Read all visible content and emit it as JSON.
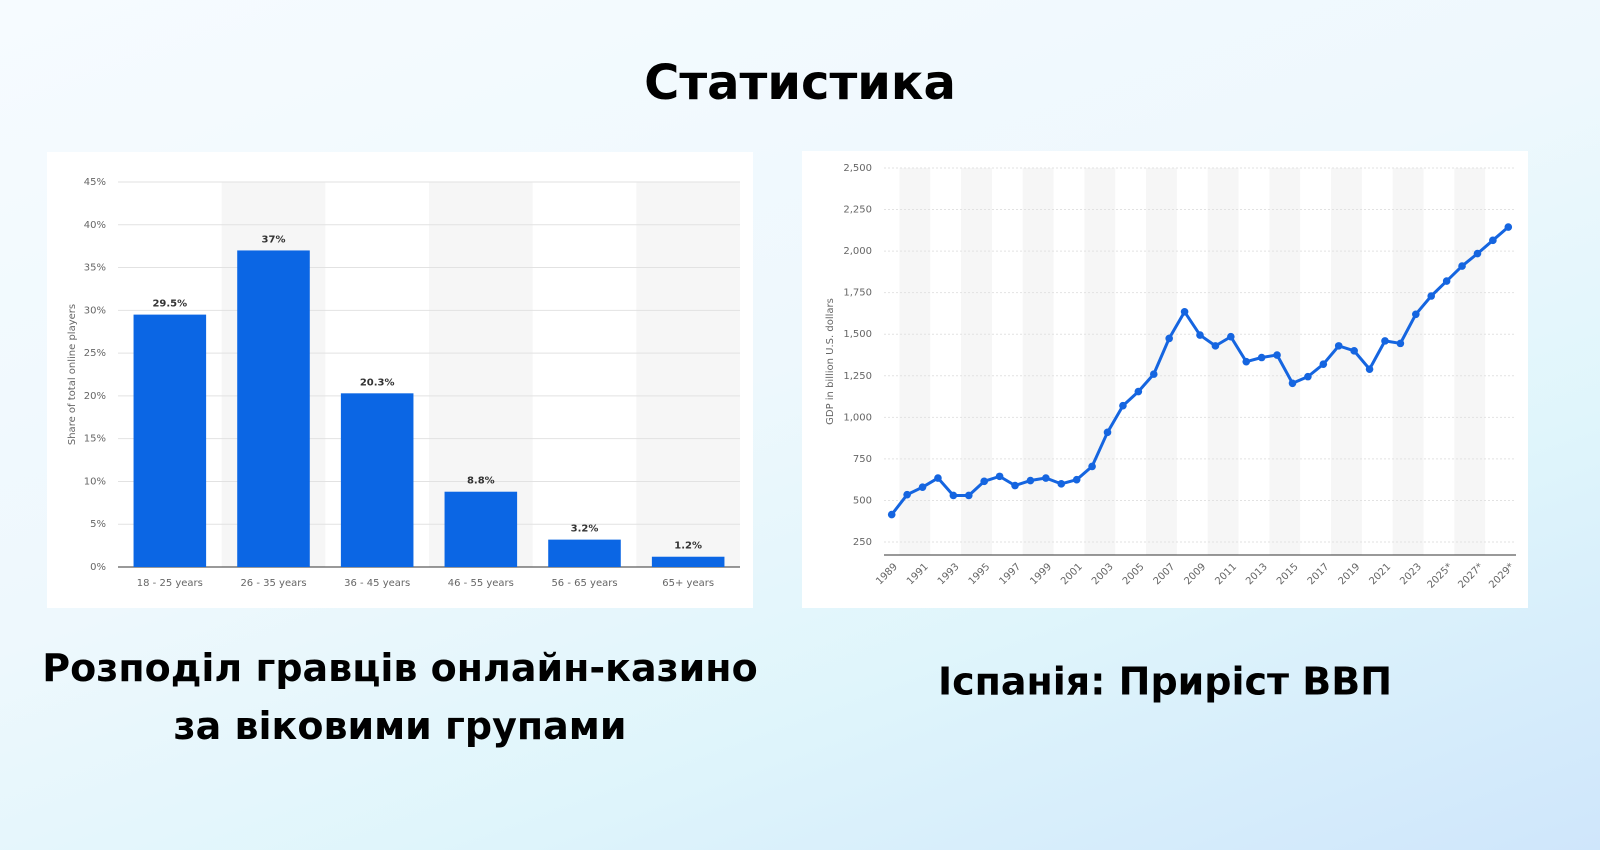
{
  "page_title": "Статистика",
  "chart_data": [
    {
      "type": "bar",
      "title": "Розподіл гравців онлайн-казино за віковими групами",
      "y_label": "Share of total online players",
      "categories": [
        "18 - 25 years",
        "26 - 35 years",
        "36 - 45 years",
        "46 - 55 years",
        "56 - 65 years",
        "65+ years"
      ],
      "values": [
        29.5,
        37,
        20.3,
        8.8,
        3.2,
        1.2
      ],
      "value_labels": [
        "29.5%",
        "37%",
        "20.3%",
        "8.8%",
        "3.2%",
        "1.2%"
      ],
      "color": "#0b66e4",
      "ylim": [
        0,
        45
      ],
      "yticks": [
        {
          "value": 0,
          "label": "0%"
        },
        {
          "value": 5,
          "label": "5%"
        },
        {
          "value": 10,
          "label": "10%"
        },
        {
          "value": 15,
          "label": "15%"
        },
        {
          "value": 20,
          "label": "20%"
        },
        {
          "value": 25,
          "label": "25%"
        },
        {
          "value": 30,
          "label": "30%"
        },
        {
          "value": 35,
          "label": "35%"
        },
        {
          "value": 40,
          "label": "40%"
        },
        {
          "value": 45,
          "label": "45%"
        }
      ],
      "grid": true
    },
    {
      "type": "line",
      "title": "Іспанія: Приріст ВВП",
      "y_label": "GDP in billion U.S. dollars",
      "categories": [
        "1989",
        null,
        "1991",
        null,
        "1993",
        null,
        "1995",
        null,
        "1997",
        null,
        "1999",
        null,
        "2001",
        null,
        "2003",
        null,
        "2005",
        null,
        "2007",
        null,
        "2009",
        null,
        "2011",
        null,
        "2013",
        null,
        "2015",
        null,
        "2017",
        null,
        "2019",
        null,
        "2021",
        null,
        "2023",
        null,
        "2025*",
        null,
        "2027*",
        null,
        "2029*"
      ],
      "values": [
        415,
        535,
        580,
        635,
        530,
        530,
        615,
        645,
        590,
        620,
        635,
        600,
        625,
        705,
        910,
        1070,
        1155,
        1260,
        1475,
        1635,
        1495,
        1430,
        1485,
        1335,
        1360,
        1375,
        1205,
        1245,
        1320,
        1430,
        1400,
        1290,
        1460,
        1445,
        1620,
        1730,
        1820,
        1910,
        1985,
        2065,
        2145
      ],
      "color": "#1565e0",
      "ylim": [
        172,
        2500
      ],
      "yticks": [
        250,
        500,
        750,
        {
          "value": 1000,
          "label": "1,000"
        },
        {
          "value": 1250,
          "label": "1,250"
        },
        {
          "value": 1500,
          "label": "1,500"
        },
        {
          "value": 1750,
          "label": "1,750"
        },
        {
          "value": 2000,
          "label": "2,000"
        },
        {
          "value": 2250,
          "label": "2,250"
        },
        {
          "value": 2500,
          "label": "2,500"
        }
      ],
      "grid": true
    }
  ]
}
